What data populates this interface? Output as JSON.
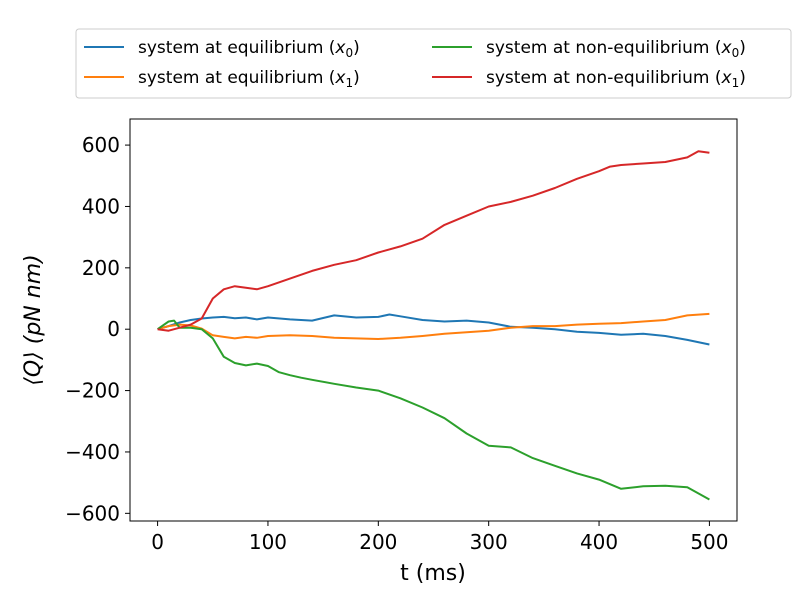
{
  "chart_data": {
    "type": "line",
    "xlabel": "t (ms)",
    "ylabel": "⟨Q⟩ (pN nm)",
    "xlim": [
      -25,
      525
    ],
    "ylim": [
      -625,
      685
    ],
    "x_ticks": [
      0,
      100,
      200,
      300,
      400,
      500
    ],
    "y_ticks": [
      -600,
      -400,
      -200,
      0,
      200,
      400,
      600
    ],
    "x_tick_labels": [
      "0",
      "100",
      "200",
      "300",
      "400",
      "500"
    ],
    "y_tick_labels": [
      "−600",
      "−400",
      "−200",
      "0",
      "200",
      "400",
      "600"
    ],
    "grid": false,
    "legend": {
      "placement": "above-top",
      "columns": 2,
      "items_col1": [
        {
          "text": "system at equilibrium (",
          "var": "x",
          "sub": "0",
          "tail": ")",
          "color": "#1f77b4"
        },
        {
          "text": "system at equilibrium (",
          "var": "x",
          "sub": "1",
          "tail": ")",
          "color": "#ff7f0e"
        }
      ],
      "items_col2": [
        {
          "text": "system at non-equilibrium (",
          "var": "x",
          "sub": "0",
          "tail": ")",
          "color": "#2ca02c"
        },
        {
          "text": "system at non-equilibrium (",
          "var": "x",
          "sub": "1",
          "tail": ")",
          "color": "#d62728"
        }
      ]
    },
    "series": [
      {
        "color": "#1f77b4",
        "x": [
          0,
          10,
          20,
          30,
          40,
          50,
          60,
          70,
          80,
          90,
          100,
          120,
          140,
          160,
          180,
          200,
          210,
          220,
          240,
          260,
          280,
          300,
          320,
          340,
          360,
          380,
          400,
          420,
          440,
          460,
          480,
          500
        ],
        "y": [
          0,
          10,
          22,
          30,
          35,
          38,
          40,
          36,
          38,
          32,
          38,
          32,
          28,
          45,
          38,
          40,
          48,
          42,
          30,
          25,
          28,
          22,
          8,
          5,
          0,
          -8,
          -12,
          -18,
          -15,
          -22,
          -35,
          -50
        ]
      },
      {
        "color": "#ff7f0e",
        "x": [
          0,
          10,
          20,
          30,
          40,
          50,
          60,
          70,
          80,
          90,
          100,
          120,
          140,
          160,
          180,
          200,
          220,
          240,
          260,
          280,
          300,
          320,
          340,
          360,
          380,
          400,
          420,
          440,
          460,
          480,
          500
        ],
        "y": [
          0,
          10,
          15,
          12,
          2,
          -20,
          -25,
          -30,
          -25,
          -28,
          -22,
          -20,
          -22,
          -28,
          -30,
          -32,
          -28,
          -22,
          -15,
          -10,
          -5,
          5,
          10,
          10,
          15,
          18,
          20,
          25,
          30,
          45,
          50
        ]
      },
      {
        "color": "#2ca02c",
        "x": [
          0,
          10,
          15,
          20,
          30,
          40,
          50,
          60,
          70,
          80,
          90,
          100,
          110,
          120,
          130,
          140,
          160,
          180,
          200,
          220,
          240,
          260,
          280,
          300,
          320,
          340,
          360,
          380,
          400,
          420,
          440,
          460,
          480,
          500
        ],
        "y": [
          0,
          25,
          28,
          5,
          5,
          0,
          -30,
          -90,
          -110,
          -118,
          -112,
          -120,
          -140,
          -150,
          -158,
          -165,
          -178,
          -190,
          -200,
          -225,
          -255,
          -290,
          -340,
          -380,
          -385,
          -420,
          -445,
          -470,
          -490,
          -520,
          -512,
          -510,
          -515,
          -555
        ]
      },
      {
        "color": "#d62728",
        "x": [
          0,
          10,
          20,
          30,
          40,
          50,
          60,
          70,
          80,
          90,
          100,
          120,
          140,
          160,
          180,
          200,
          220,
          240,
          260,
          280,
          300,
          320,
          340,
          360,
          380,
          400,
          410,
          420,
          440,
          460,
          480,
          490,
          500
        ],
        "y": [
          0,
          -5,
          5,
          15,
          35,
          100,
          130,
          140,
          135,
          130,
          140,
          165,
          190,
          210,
          225,
          250,
          270,
          295,
          340,
          370,
          400,
          415,
          435,
          460,
          490,
          515,
          530,
          535,
          540,
          545,
          560,
          580,
          575
        ]
      }
    ]
  }
}
